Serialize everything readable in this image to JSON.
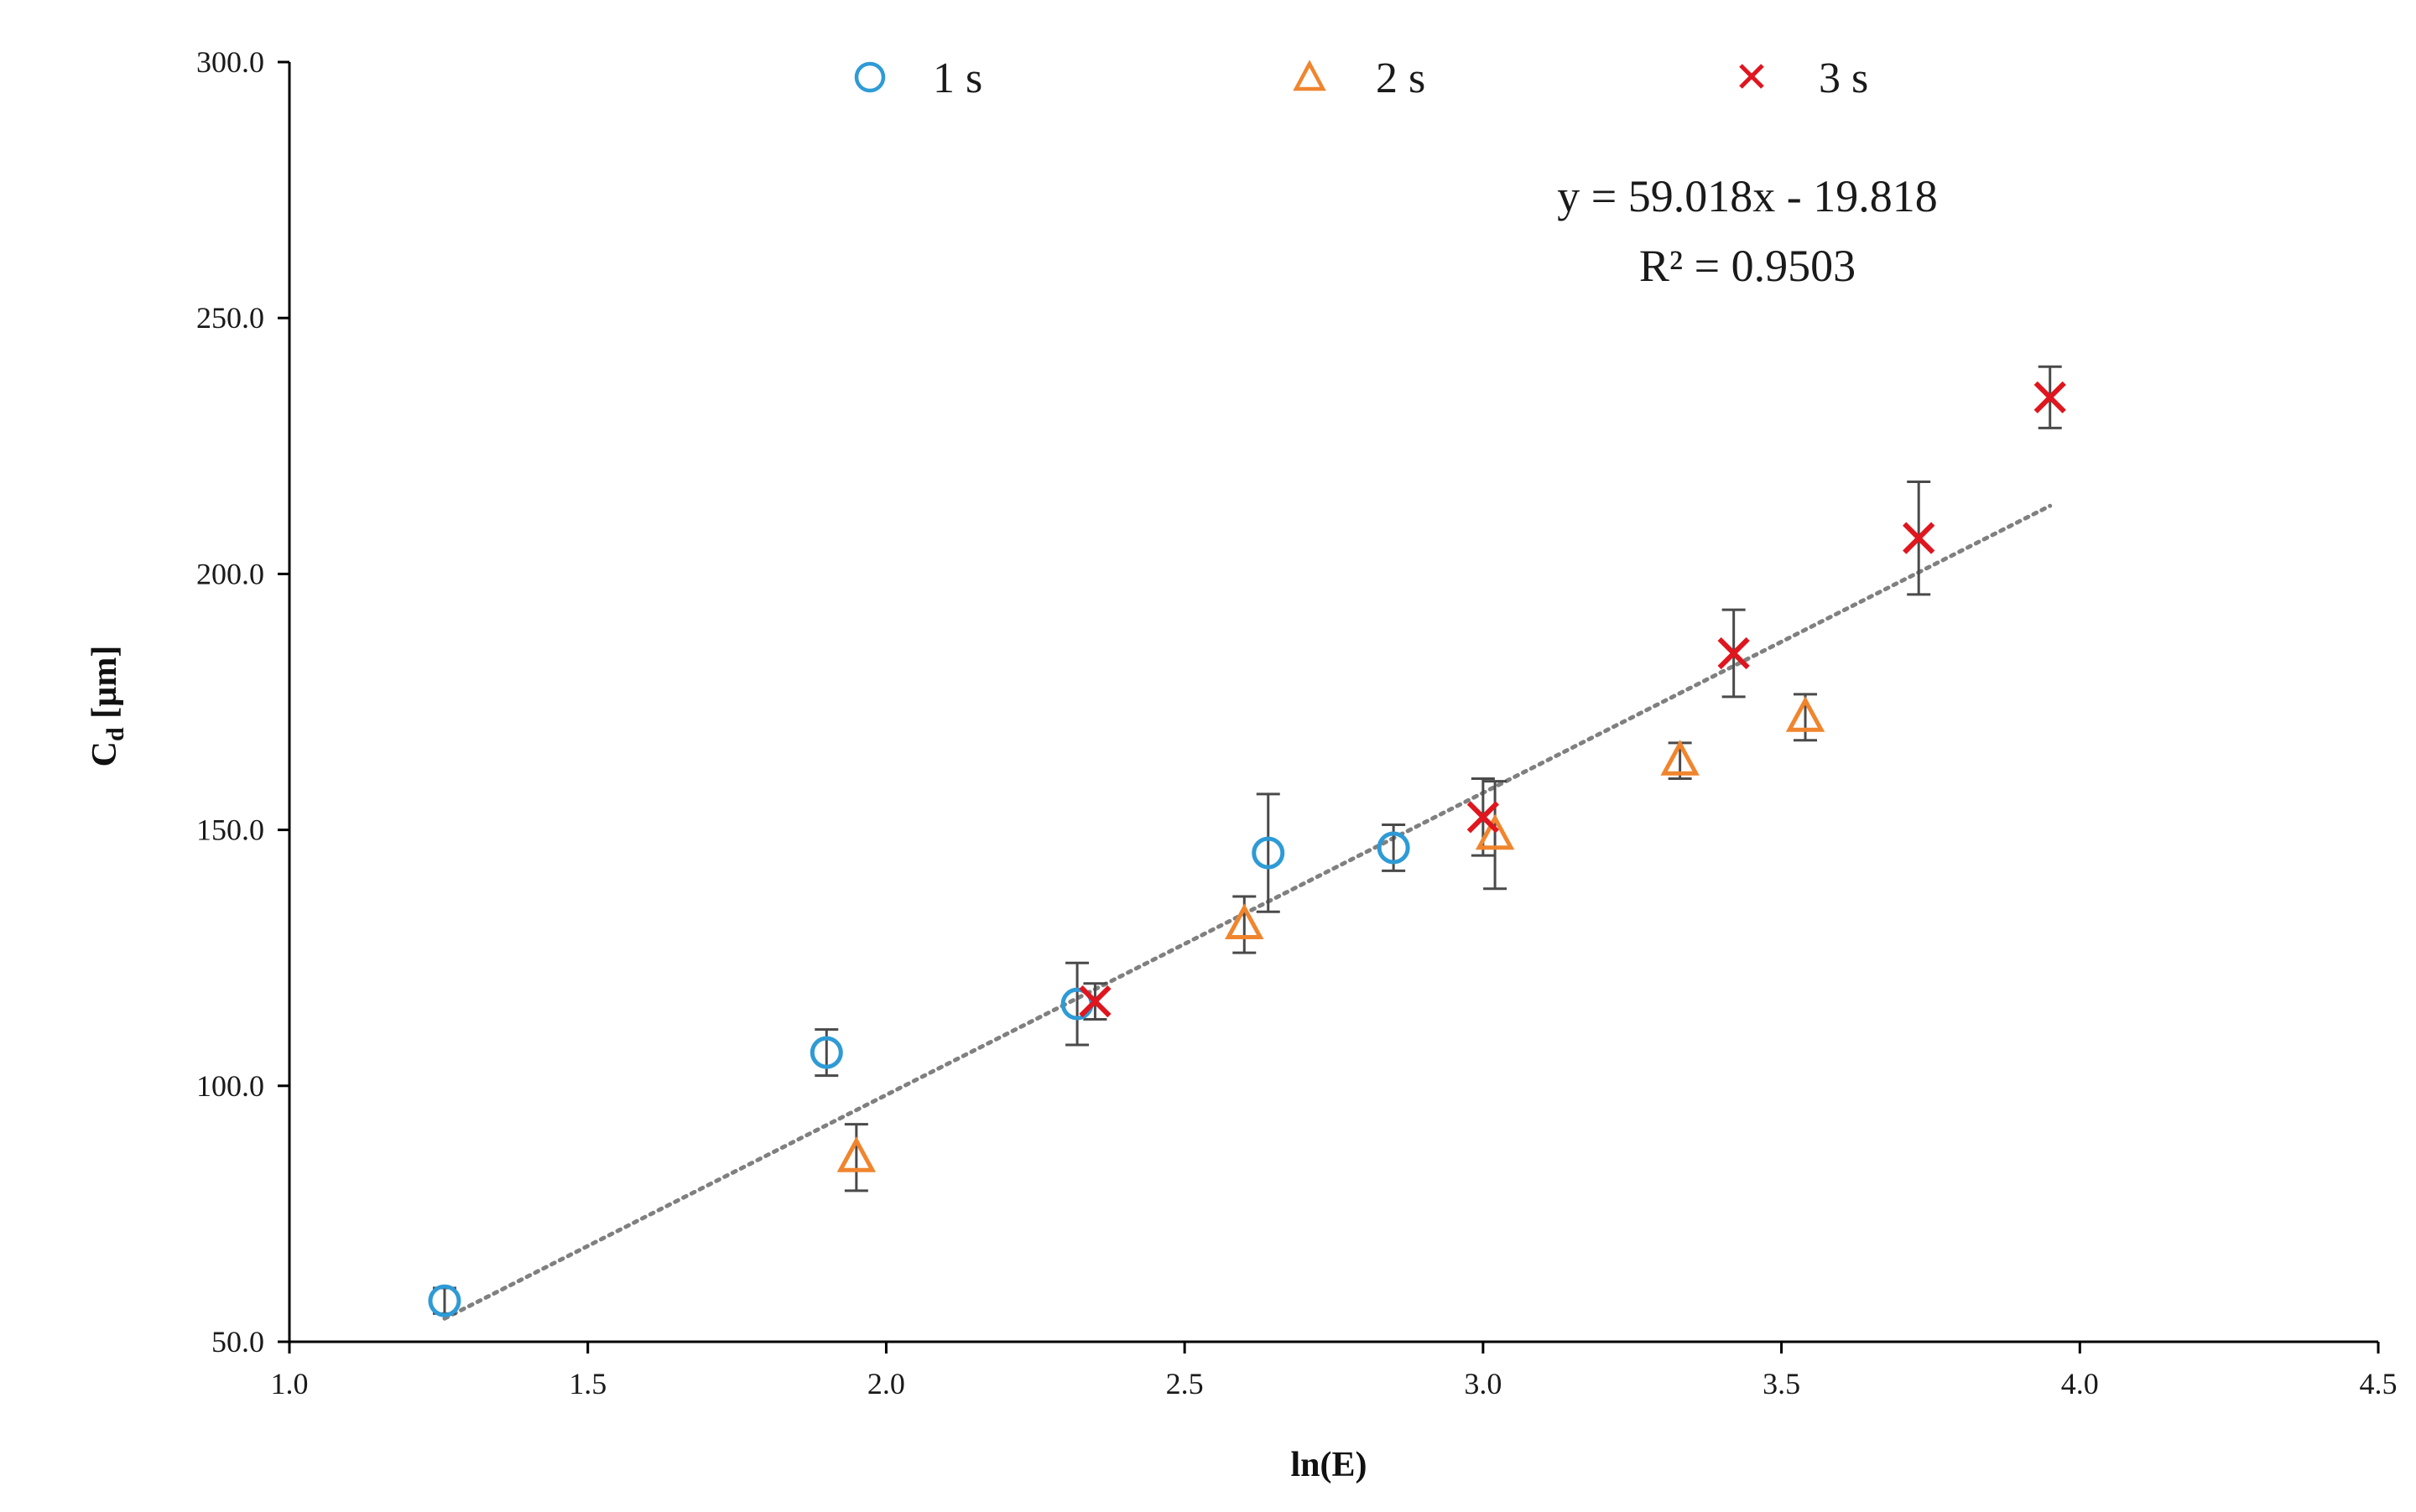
{
  "chart_data": {
    "type": "scatter",
    "title": "",
    "xlabel": "ln(E)",
    "ylabel_main": "C",
    "ylabel_sub": "d",
    "ylabel_unit": " [µm]",
    "xlim": [
      1.0,
      4.5
    ],
    "ylim": [
      50.0,
      300.0
    ],
    "x_ticks": [
      1.0,
      1.5,
      2.0,
      2.5,
      3.0,
      3.5,
      4.0,
      4.5
    ],
    "x_tick_labels": [
      "1.0",
      "1.5",
      "2.0",
      "2.5",
      "3.0",
      "3.5",
      "4.0",
      "4.5"
    ],
    "y_ticks": [
      50.0,
      100.0,
      150.0,
      200.0,
      250.0,
      300.0
    ],
    "y_tick_labels": [
      "50.0",
      "100.0",
      "150.0",
      "200.0",
      "250.0",
      "300.0"
    ],
    "grid": false,
    "legend_position": "top-center",
    "series": [
      {
        "name": "1 s",
        "marker": "circle",
        "color": "#2E9BD6",
        "points": [
          {
            "x": 1.26,
            "y": 58.0,
            "err": 2.5
          },
          {
            "x": 1.9,
            "y": 106.5,
            "err": 4.5
          },
          {
            "x": 2.32,
            "y": 116.0,
            "err": 8.0
          },
          {
            "x": 2.64,
            "y": 145.5,
            "err": 11.5
          },
          {
            "x": 2.85,
            "y": 146.5,
            "err": 4.5
          }
        ]
      },
      {
        "name": "2 s",
        "marker": "triangle",
        "color": "#F0852E",
        "points": [
          {
            "x": 1.95,
            "y": 86.0,
            "err": 6.5
          },
          {
            "x": 2.6,
            "y": 131.5,
            "err": 5.5
          },
          {
            "x": 3.02,
            "y": 149.0,
            "err": 10.5
          },
          {
            "x": 3.33,
            "y": 163.5,
            "err": 3.5
          },
          {
            "x": 3.54,
            "y": 172.0,
            "err": 4.5
          }
        ]
      },
      {
        "name": "3 s",
        "marker": "cross",
        "color": "#E0161F",
        "points": [
          {
            "x": 2.35,
            "y": 116.5,
            "err": 3.5
          },
          {
            "x": 3.0,
            "y": 152.5,
            "err": 7.5
          },
          {
            "x": 3.42,
            "y": 184.5,
            "err": 8.5
          },
          {
            "x": 3.73,
            "y": 207.0,
            "err": 11.0
          },
          {
            "x": 3.95,
            "y": 234.5,
            "err": 6.0
          }
        ]
      }
    ],
    "trendline": {
      "type": "linear",
      "slope": 59.018,
      "intercept": -19.818,
      "x_range": [
        1.26,
        3.95
      ],
      "color": "#808080",
      "equation": "y = 59.018x - 19.818",
      "r2_label": "R² = 0.9503"
    },
    "error_bar_color": "#4a4a4a"
  }
}
